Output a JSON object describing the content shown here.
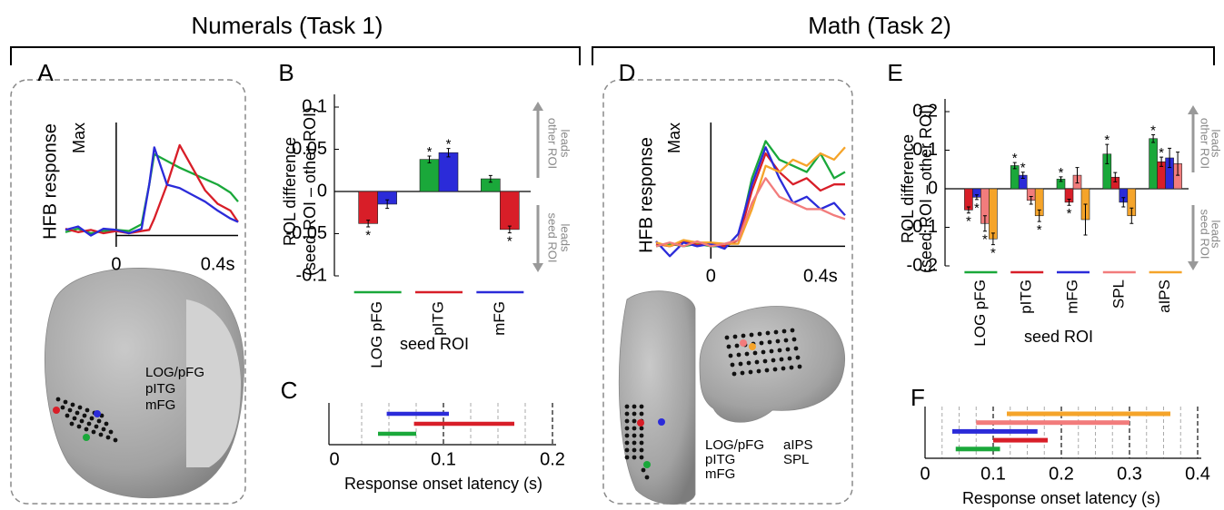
{
  "headers": [
    "Numerals (Task 1)",
    "Math (Task 2)"
  ],
  "chart_data": [
    {
      "type": "line",
      "panel": "A",
      "ylabel": "HFB response",
      "xlim": [
        -0.2,
        0.48
      ],
      "ylim": [
        -0.1,
        1
      ],
      "xticks": [
        0,
        {
          "value": 0.4,
          "label": "0.4s"
        }
      ],
      "yticks": [
        {
          "value": 1,
          "label": "Max"
        }
      ],
      "x": [
        -0.2,
        -0.15,
        -0.1,
        -0.05,
        0,
        0.05,
        0.1,
        0.13,
        0.15,
        0.2,
        0.25,
        0.3,
        0.35,
        0.4,
        0.45,
        0.48
      ],
      "series": [
        {
          "name": "LOG/pFG",
          "color": "#1aa83a",
          "values": [
            0.03,
            0.06,
            0.02,
            0.04,
            0.05,
            0.04,
            0.1,
            0.45,
            0.72,
            0.66,
            0.6,
            0.55,
            0.5,
            0.45,
            0.38,
            0.3
          ]
        },
        {
          "name": "pITG",
          "color": "#d81e28",
          "values": [
            0.06,
            0.03,
            0.05,
            0.02,
            0.04,
            0.02,
            0.04,
            0.05,
            0.15,
            0.45,
            0.8,
            0.6,
            0.4,
            0.28,
            0.22,
            0.12
          ]
        },
        {
          "name": "mFG",
          "color": "#2b2bd9",
          "values": [
            0.05,
            0.08,
            0.0,
            0.06,
            0.05,
            0.02,
            0.06,
            0.45,
            0.78,
            0.45,
            0.42,
            0.36,
            0.3,
            0.22,
            0.15,
            0.12
          ]
        }
      ]
    },
    {
      "type": "bar",
      "panel": "B",
      "ylabel": [
        "ROL difference",
        "(seed ROI – other ROI)"
      ],
      "xlabel": "seed ROI",
      "categories": [
        "LOG pFG",
        "pITG",
        "mFG"
      ],
      "category_colors": [
        "#1aa83a",
        "#d81e28",
        "#2b2bd9"
      ],
      "ylim": [
        -0.1,
        0.1
      ],
      "yticks": [
        0.1,
        0.05,
        0,
        -0.05,
        -0.1
      ],
      "annotations": [
        [
          "other ROI",
          "leads"
        ],
        [
          "seed ROI",
          "leads"
        ]
      ],
      "series": [
        {
          "color": "#1aa83a",
          "values": [
            null,
            0.038,
            0.015
          ],
          "errors": [
            null,
            0.004,
            0.004
          ],
          "stars": [
            null,
            "*",
            null
          ]
        },
        {
          "color": "#d81e28",
          "values": [
            -0.038,
            null,
            -0.045
          ],
          "errors": [
            0.004,
            null,
            0.004
          ],
          "stars": [
            "*",
            null,
            "*"
          ]
        },
        {
          "color": "#2b2bd9",
          "values": [
            -0.015,
            0.046,
            null
          ],
          "errors": [
            0.005,
            0.005,
            null
          ],
          "stars": [
            null,
            "*",
            null
          ]
        }
      ]
    },
    {
      "type": "range",
      "panel": "C",
      "xlabel": "Response onset latency (s)",
      "xlim": [
        0,
        0.2
      ],
      "xticks": [
        0,
        0.1,
        0.2
      ],
      "xgrid": [
        0.025,
        0.05,
        0.075,
        0.125,
        0.15,
        0.175
      ],
      "series": [
        {
          "color": "#2b2bd9",
          "start": 0.048,
          "end": 0.105
        },
        {
          "color": "#d81e28",
          "start": 0.073,
          "end": 0.165
        },
        {
          "color": "#1aa83a",
          "start": 0.04,
          "end": 0.075
        }
      ]
    },
    {
      "type": "line",
      "panel": "D",
      "ylabel": "HFB response",
      "xlim": [
        -0.2,
        0.49
      ],
      "ylim": [
        -0.1,
        1
      ],
      "xticks": [
        0,
        {
          "value": 0.4,
          "label": "0.4s"
        }
      ],
      "yticks": [
        {
          "value": 1,
          "label": "Max"
        }
      ],
      "x": [
        -0.2,
        -0.15,
        -0.1,
        -0.05,
        0,
        0.05,
        0.1,
        0.15,
        0.2,
        0.25,
        0.3,
        0.35,
        0.4,
        0.45,
        0.49
      ],
      "series": [
        {
          "name": "LOG/pFG",
          "color": "#1aa83a",
          "values": [
            0.0,
            0.02,
            0.0,
            0.02,
            0.0,
            0.0,
            0.05,
            0.55,
            0.85,
            0.7,
            0.65,
            0.6,
            0.75,
            0.55,
            0.6
          ]
        },
        {
          "name": "pITG",
          "color": "#d81e28",
          "values": [
            0.02,
            0.0,
            0.04,
            0.01,
            0.02,
            0.0,
            0.05,
            0.45,
            0.75,
            0.6,
            0.5,
            0.55,
            0.45,
            0.5,
            0.5
          ]
        },
        {
          "name": "mFG",
          "color": "#2b2bd9",
          "values": [
            0.04,
            -0.08,
            0.03,
            0.0,
            0.02,
            -0.02,
            0.1,
            0.5,
            0.8,
            0.55,
            0.35,
            0.4,
            0.3,
            0.35,
            0.25
          ]
        },
        {
          "name": "aIPS",
          "color": "#f5a42a",
          "values": [
            0.03,
            0.0,
            0.05,
            0.03,
            0.03,
            0.02,
            0.02,
            0.3,
            0.65,
            0.6,
            0.7,
            0.65,
            0.75,
            0.7,
            0.8
          ]
        },
        {
          "name": "SPL",
          "color": "#f27c7c",
          "values": [
            0.0,
            0.03,
            0.0,
            0.04,
            0.0,
            0.02,
            0.05,
            0.35,
            0.55,
            0.4,
            0.35,
            0.3,
            0.3,
            0.25,
            0.22
          ]
        }
      ]
    },
    {
      "type": "bar",
      "panel": "E",
      "ylabel": [
        "ROL difference",
        "(seed ROI – other ROI)"
      ],
      "xlabel": "seed ROI",
      "categories": [
        "LOG pFG",
        "pITG",
        "mFG",
        "SPL",
        "aIPS"
      ],
      "category_colors": [
        "#1aa83a",
        "#d81e28",
        "#2b2bd9",
        "#f27c7c",
        "#f5a42a"
      ],
      "ylim": [
        -0.2,
        0.2
      ],
      "yticks": [
        0.2,
        0.1,
        0,
        -0.1,
        -0.2
      ],
      "annotations": [
        [
          "other ROI",
          "leads"
        ],
        [
          "seed ROI",
          "leads"
        ]
      ],
      "series": [
        {
          "color": "#1aa83a",
          "values": [
            null,
            0.06,
            0.025,
            0.09,
            0.13
          ],
          "errors": [
            null,
            0.008,
            0.006,
            0.025,
            0.01
          ],
          "stars": [
            null,
            "*",
            "*",
            "*",
            "*"
          ]
        },
        {
          "color": "#d81e28",
          "values": [
            -0.055,
            null,
            -0.035,
            0.03,
            0.07
          ],
          "errors": [
            0.008,
            null,
            0.008,
            0.012,
            0.012
          ],
          "stars": [
            "*",
            null,
            "*",
            null,
            "*"
          ]
        },
        {
          "color": "#2b2bd9",
          "values": [
            -0.022,
            0.035,
            null,
            -0.035,
            0.08
          ],
          "errors": [
            0.006,
            0.008,
            null,
            0.012,
            0.025
          ],
          "stars": [
            "*",
            "*",
            null,
            null,
            null
          ]
        },
        {
          "color": "#f27c7c",
          "values": [
            -0.09,
            -0.03,
            0.035,
            null,
            0.065
          ],
          "errors": [
            0.02,
            0.01,
            0.02,
            null,
            0.03
          ],
          "stars": [
            "*",
            null,
            null,
            null,
            null
          ]
        },
        {
          "color": "#f5a42a",
          "values": [
            -0.13,
            -0.07,
            -0.08,
            -0.07,
            null
          ],
          "errors": [
            0.015,
            0.015,
            0.04,
            0.02,
            null
          ],
          "stars": [
            "*",
            "*",
            null,
            null,
            null
          ]
        }
      ]
    },
    {
      "type": "range",
      "panel": "F",
      "xlabel": "Response onset latency (s)",
      "xlim": [
        0,
        0.4
      ],
      "xticks": [
        0,
        0.1,
        0.2,
        0.3,
        0.4
      ],
      "xgrid": [
        0.025,
        0.05,
        0.075,
        0.125,
        0.15,
        0.175,
        0.225,
        0.25,
        0.275,
        0.325,
        0.35,
        0.375
      ],
      "series": [
        {
          "color": "#f5a42a",
          "start": 0.12,
          "end": 0.36
        },
        {
          "color": "#f27c7c",
          "start": 0.075,
          "end": 0.3
        },
        {
          "color": "#2b2bd9",
          "start": 0.04,
          "end": 0.165
        },
        {
          "color": "#d81e28",
          "start": 0.1,
          "end": 0.18
        },
        {
          "color": "#1aa83a",
          "start": 0.045,
          "end": 0.11
        }
      ]
    }
  ]
}
